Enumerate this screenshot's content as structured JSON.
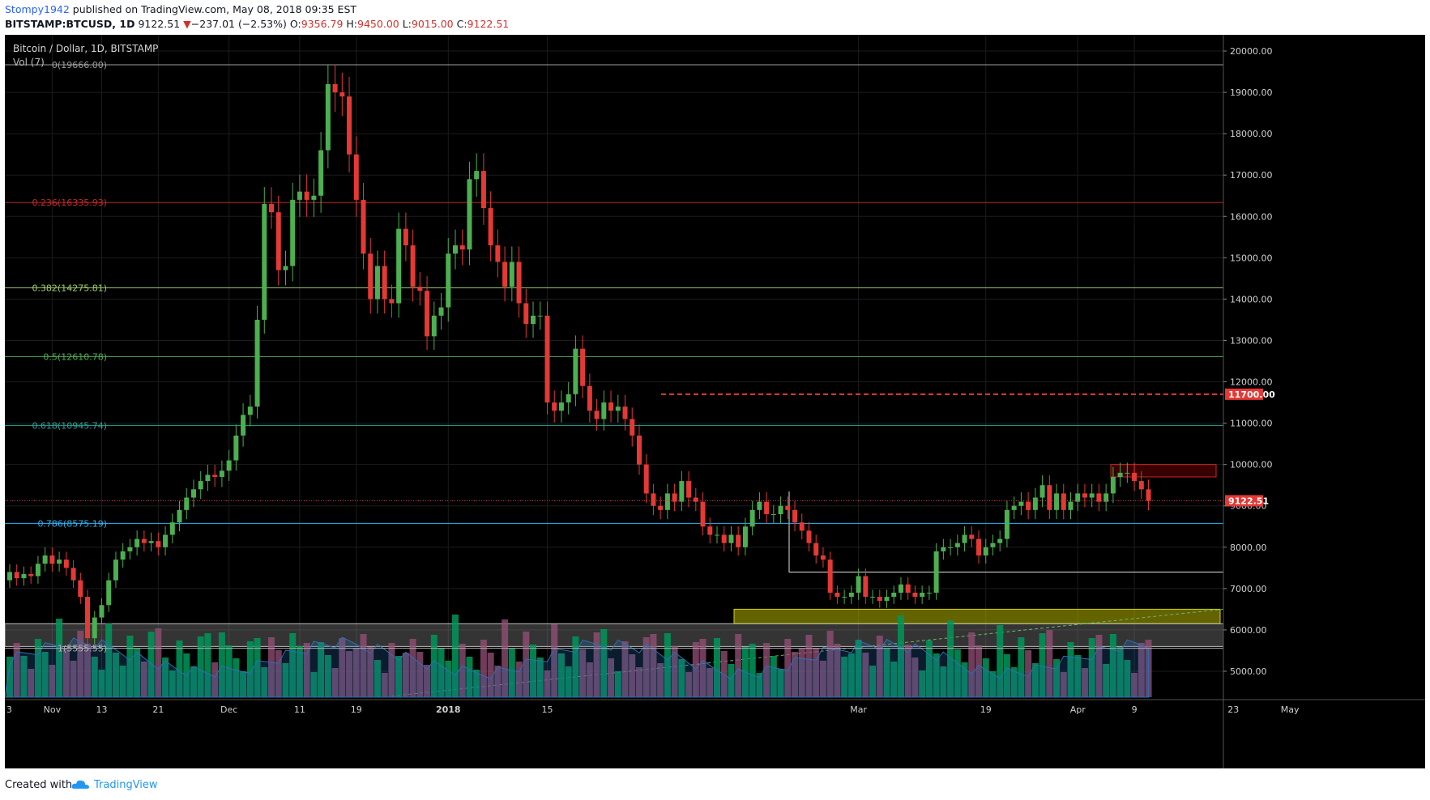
{
  "header": {
    "author": "Stompy1942",
    "published": "published on TradingView.com, May 08, 2018 09:35 EST",
    "symbol_line": "BITSTAMP:BTCUSD, 1D",
    "last": "9122.51",
    "change_arrow": "▼",
    "change": "−237.01 (−2.53%)",
    "o_label": "O:",
    "o": "9356.79",
    "h_label": "H:",
    "h": "9450.00",
    "l_label": "L:",
    "l": "9015.00",
    "c_label": "C:",
    "c": "9122.51"
  },
  "chart_title": "Bitcoin / Dollar, 1D, BITSTAMP",
  "volume_label": "Vol (7)",
  "footer": {
    "created": "Created with",
    "brand": "TradingView"
  },
  "colors": {
    "background": "#000000",
    "up": "#4caf50",
    "down": "#e53935",
    "grid": "#2a2a2a"
  },
  "chart_data": {
    "type": "candlestick",
    "title": "Bitcoin / Dollar, 1D, BITSTAMP",
    "ylim": [
      4500,
      20500
    ],
    "y_ticks": [
      "20000.00",
      "19000.00",
      "18000.00",
      "17000.00",
      "16000.00",
      "15000.00",
      "14000.00",
      "13000.00",
      "12000.00",
      "11000.00",
      "10000.00",
      "9000.00",
      "8000.00",
      "7000.00",
      "6000.00",
      "5000.00"
    ],
    "x_ticks": [
      {
        "label": "Nov",
        "day": 6
      },
      {
        "label": "13",
        "day": 13
      },
      {
        "label": "21",
        "day": 21
      },
      {
        "label": "Dec",
        "day": 31
      },
      {
        "label": "11",
        "day": 41
      },
      {
        "label": "19",
        "day": 49
      },
      {
        "label": "2018",
        "day": 62
      },
      {
        "label": "15",
        "day": 76
      },
      {
        "label": "Mar",
        "day": 120
      },
      {
        "label": "19",
        "day": 138
      },
      {
        "label": "Apr",
        "day": 151
      },
      {
        "label": "9",
        "day": 159
      },
      {
        "label": "23",
        "day": 173
      },
      {
        "label": "May",
        "day": 181
      }
    ],
    "x_start_label": "3",
    "fibonacci": [
      {
        "label": "0(19666.00)",
        "level": 19666,
        "color": "#9e9e9e"
      },
      {
        "label": "0.236(16335.93)",
        "level": 16335.93,
        "color": "#c62828"
      },
      {
        "label": "0.382(14275.81)",
        "level": 14275.81,
        "color": "#9ccc65"
      },
      {
        "label": "0.5(12610.78)",
        "level": 12610.78,
        "color": "#4caf50"
      },
      {
        "label": "0.618(10945.74)",
        "level": 10945.74,
        "color": "#26a69a"
      },
      {
        "label": "0.786(8575.19)",
        "level": 8575.19,
        "color": "#29b6f6"
      },
      {
        "label": "1(5555.55)",
        "level": 5555.55,
        "color": "#b0b0b0"
      }
    ],
    "price_labels": [
      {
        "value": "11700.00",
        "level": 11700,
        "color": "#e53935"
      },
      {
        "value": "9122.51",
        "level": 9122.51,
        "color": "#e53935"
      }
    ],
    "closes": [
      7400,
      7250,
      7350,
      7300,
      7600,
      7800,
      7600,
      7700,
      7500,
      7200,
      6800,
      5800,
      6300,
      6600,
      7200,
      7700,
      7900,
      8000,
      8200,
      8100,
      8150,
      8000,
      8300,
      8600,
      8900,
      9200,
      9400,
      9600,
      9750,
      9700,
      9850,
      10100,
      10700,
      11200,
      11400,
      13500,
      16300,
      16100,
      14700,
      14800,
      16400,
      16600,
      16400,
      16500,
      17600,
      19200,
      19000,
      18900,
      17500,
      16400,
      15100,
      14000,
      14800,
      14000,
      13900,
      15700,
      15300,
      14300,
      14200,
      13100,
      13600,
      13800,
      15100,
      15300,
      15200,
      16900,
      17100,
      16200,
      15300,
      14900,
      14300,
      14900,
      13900,
      13400,
      13600,
      13600,
      11500,
      11300,
      11500,
      11700,
      12800,
      11900,
      11300,
      11100,
      11500,
      11300,
      11400,
      11100,
      10700,
      10000,
      9300,
      9000,
      8900,
      9300,
      9100,
      9600,
      9200,
      9100,
      8500,
      8300,
      8300,
      8100,
      8300,
      8000,
      8500,
      8900,
      9100,
      8800,
      8800,
      9000,
      8900,
      8600,
      8400,
      8100,
      7800,
      7700,
      6900,
      6800,
      6800,
      6900,
      7300,
      6800,
      6800,
      6700,
      6800,
      6900,
      7100,
      6900,
      6800,
      6900,
      6900,
      7900,
      8000,
      8000,
      8100,
      8300,
      8200,
      7800,
      8000,
      8100,
      8200,
      8900,
      9000,
      9100,
      8900,
      9200,
      9500,
      8900,
      9300,
      8900,
      9100,
      9300,
      9200,
      9300,
      9100,
      9300,
      9700,
      9800,
      9800,
      9600,
      9400,
      9122.51
    ],
    "volume_ma_note": "Vol (7)"
  }
}
